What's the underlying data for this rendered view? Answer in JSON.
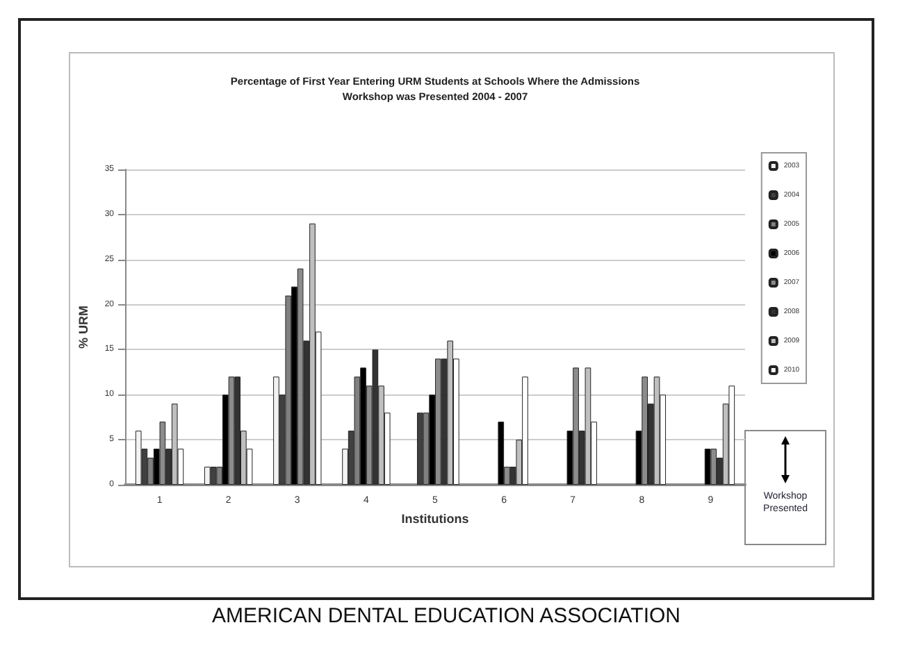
{
  "chart_data": {
    "type": "bar",
    "title": "Percentage of First Year Entering URM Students at Schools Where the Admissions\nWorkshop was Presented 2004 - 2007",
    "xlabel": "Institutions",
    "ylabel": "% URM",
    "categories": [
      "1",
      "2",
      "3",
      "4",
      "5",
      "6",
      "7",
      "8",
      "9"
    ],
    "series": [
      {
        "name": "2003",
        "color": "#f2f2f2",
        "values": [
          6,
          2,
          12,
          4,
          null,
          null,
          null,
          null,
          null
        ]
      },
      {
        "name": "2004",
        "color": "#404040",
        "values": [
          4,
          2,
          10,
          6,
          8,
          null,
          null,
          null,
          null
        ]
      },
      {
        "name": "2005",
        "color": "#808080",
        "values": [
          3,
          2,
          21,
          12,
          8,
          null,
          null,
          null,
          null
        ]
      },
      {
        "name": "2006",
        "color": "#000000",
        "values": [
          4,
          10,
          22,
          13,
          10,
          7,
          6,
          6,
          4
        ]
      },
      {
        "name": "2007",
        "color": "#8c8c8c",
        "values": [
          7,
          12,
          24,
          11,
          14,
          2,
          13,
          12,
          4
        ]
      },
      {
        "name": "2008",
        "color": "#333333",
        "values": [
          4,
          12,
          16,
          15,
          14,
          2,
          6,
          9,
          3
        ]
      },
      {
        "name": "2009",
        "color": "#bfbfbf",
        "values": [
          9,
          6,
          29,
          11,
          16,
          5,
          13,
          12,
          9
        ]
      },
      {
        "name": "2010",
        "color": "#ffffff",
        "values": [
          4,
          4,
          17,
          8,
          14,
          12,
          7,
          10,
          11
        ]
      }
    ],
    "ylim": [
      0,
      35
    ],
    "yticks": [
      0,
      5,
      10,
      15,
      20,
      25,
      30,
      35
    ],
    "grid": "y",
    "legend": "right",
    "annotations": [
      "Workshop Presented",
      "AMERICAN DENTAL EDUCATION ASSOCIATION"
    ]
  }
}
